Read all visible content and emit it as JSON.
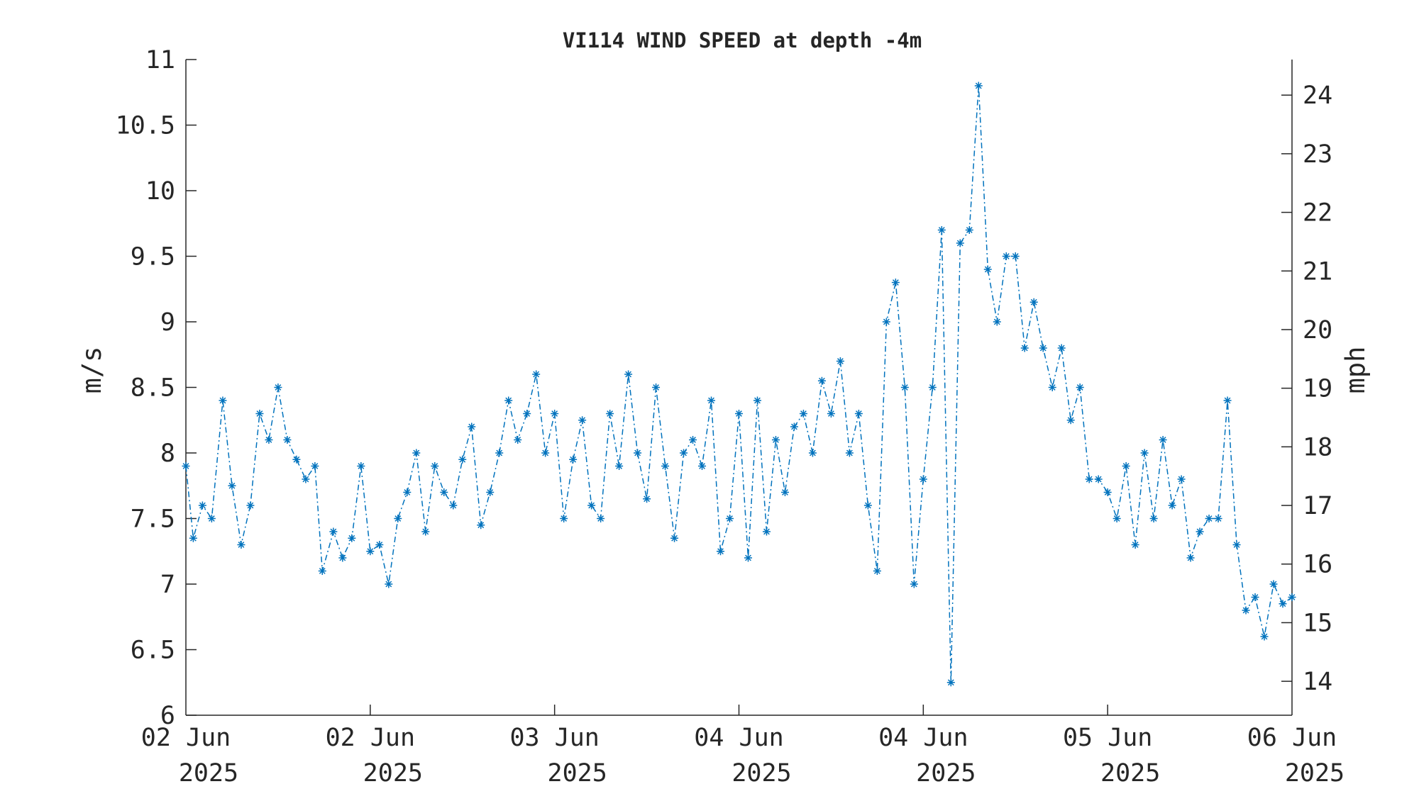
{
  "chart_data": {
    "type": "line",
    "title": "VI114 WIND SPEED at depth -4m",
    "ylabel": "m/s",
    "y2label": "mph",
    "ylim": [
      6,
      11
    ],
    "y2lim": [
      13.421,
      24.607
    ],
    "xlim": [
      0,
      6
    ],
    "grid": false,
    "line_style": "dash-dot with asterisk markers",
    "series_color": "#0072BD",
    "axis_color": "#262626",
    "x_ticks": [
      {
        "line1": "02 Jun",
        "line2": "2025"
      },
      {
        "line1": "02 Jun",
        "line2": "2025"
      },
      {
        "line1": "03 Jun",
        "line2": "2025"
      },
      {
        "line1": "04 Jun",
        "line2": "2025"
      },
      {
        "line1": "04 Jun",
        "line2": "2025"
      },
      {
        "line1": "05 Jun",
        "line2": "2025"
      },
      {
        "line1": "06 Jun",
        "line2": "2025"
      }
    ],
    "y_ticks": [
      "6",
      "6.5",
      "7",
      "7.5",
      "8",
      "8.5",
      "9",
      "9.5",
      "10",
      "10.5",
      "11"
    ],
    "y2_ticks": [
      "14",
      "15",
      "16",
      "17",
      "18",
      "19",
      "20",
      "21",
      "22",
      "23",
      "24"
    ],
    "series": [
      {
        "x": [
          0.0,
          0.04,
          0.09,
          0.14,
          0.2,
          0.25,
          0.3,
          0.35,
          0.4,
          0.45,
          0.5,
          0.55,
          0.6,
          0.65,
          0.7,
          0.74,
          0.8,
          0.85,
          0.9,
          0.95,
          1.0,
          1.05,
          1.1,
          1.15,
          1.2,
          1.25,
          1.3,
          1.35,
          1.4,
          1.45,
          1.5,
          1.55,
          1.6,
          1.65,
          1.7,
          1.75,
          1.8,
          1.85,
          1.9,
          1.95,
          2.0,
          2.05,
          2.1,
          2.15,
          2.2,
          2.25,
          2.3,
          2.35,
          2.4,
          2.45,
          2.5,
          2.55,
          2.6,
          2.65,
          2.7,
          2.75,
          2.8,
          2.85,
          2.9,
          2.95,
          3.0,
          3.05,
          3.1,
          3.15,
          3.2,
          3.25,
          3.3,
          3.35,
          3.4,
          3.45,
          3.5,
          3.55,
          3.6,
          3.65,
          3.7,
          3.75,
          3.8,
          3.85,
          3.9,
          3.95,
          4.0,
          4.05,
          4.1,
          4.15,
          4.2,
          4.25,
          4.3,
          4.35,
          4.4,
          4.45,
          4.5,
          4.55,
          4.6,
          4.65,
          4.7,
          4.75,
          4.8,
          4.85,
          4.9,
          4.95,
          5.0,
          5.05,
          5.1,
          5.15,
          5.2,
          5.25,
          5.3,
          5.35,
          5.4,
          5.45,
          5.5,
          5.55,
          5.6,
          5.65,
          5.7,
          5.75,
          5.8,
          5.85,
          5.9,
          5.95,
          6.0
        ],
        "values": [
          7.9,
          7.35,
          7.6,
          7.5,
          8.4,
          7.75,
          7.3,
          7.6,
          8.3,
          8.1,
          8.5,
          8.1,
          7.95,
          7.8,
          7.9,
          7.1,
          7.4,
          7.2,
          7.35,
          7.9,
          7.25,
          7.3,
          7.0,
          7.5,
          7.7,
          8.0,
          7.4,
          7.9,
          7.7,
          7.6,
          7.95,
          8.2,
          7.45,
          7.7,
          8.0,
          8.4,
          8.1,
          8.3,
          8.6,
          8.0,
          8.3,
          7.5,
          7.95,
          8.25,
          7.6,
          7.5,
          8.3,
          7.9,
          8.6,
          8.0,
          7.65,
          8.5,
          7.9,
          7.35,
          8.0,
          8.1,
          7.9,
          8.4,
          7.25,
          7.5,
          8.3,
          7.2,
          8.4,
          7.4,
          8.1,
          7.7,
          8.2,
          8.3,
          8.0,
          8.55,
          8.3,
          8.7,
          8.0,
          8.3,
          7.6,
          7.1,
          9.0,
          9.3,
          8.5,
          7.0,
          7.8,
          8.5,
          9.7,
          6.25,
          9.6,
          9.7,
          10.8,
          9.4,
          9.0,
          9.5,
          9.5,
          8.8,
          9.15,
          8.8,
          8.5,
          8.8,
          8.25,
          8.5,
          7.8,
          7.8,
          7.7,
          7.5,
          7.9,
          7.3,
          8.0,
          7.5,
          8.1,
          7.6,
          7.8,
          7.2,
          7.4,
          7.5,
          7.5,
          8.4,
          7.3,
          6.8,
          6.9,
          6.6,
          7.0,
          6.85,
          6.9
        ]
      }
    ]
  }
}
